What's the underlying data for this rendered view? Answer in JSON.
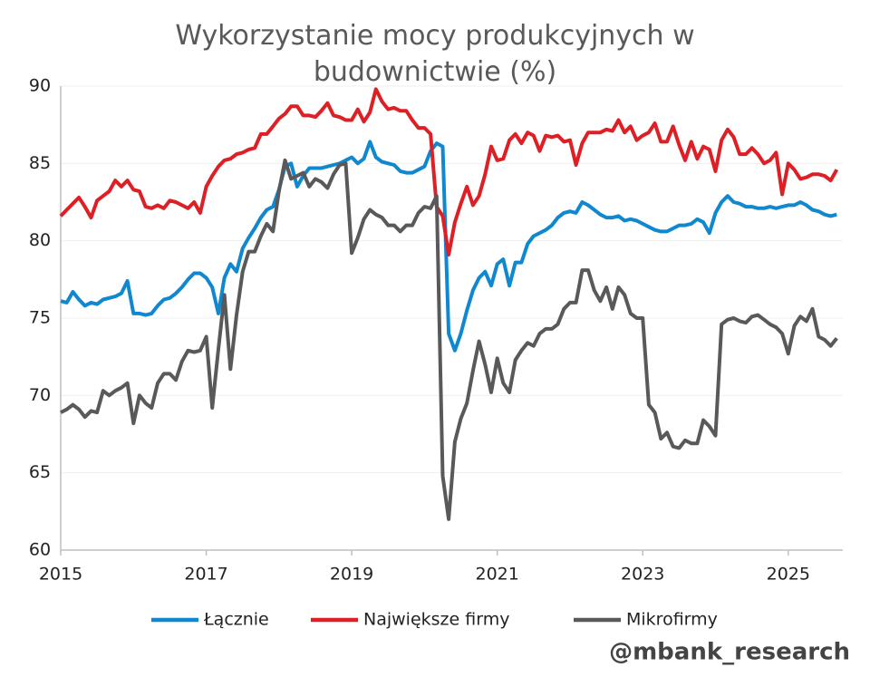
{
  "chart_data": {
    "type": "line",
    "title": "Wykorzystanie mocy produkcyjnych w budownictwie (%)",
    "annotation": "@mbank_research",
    "xlim": [
      2015,
      2025.75
    ],
    "xticks": [
      2015,
      2017,
      2019,
      2021,
      2023,
      2025
    ],
    "ylim": [
      60,
      90
    ],
    "yticks": [
      60,
      65,
      70,
      75,
      80,
      85,
      90
    ],
    "grid": true,
    "legend": "bottom",
    "x": [
      2015,
      2015.083,
      2015.167,
      2015.25,
      2015.333,
      2015.417,
      2015.5,
      2015.583,
      2015.667,
      2015.75,
      2015.833,
      2015.917,
      2016,
      2016.083,
      2016.167,
      2016.25,
      2016.333,
      2016.417,
      2016.5,
      2016.583,
      2016.667,
      2016.75,
      2016.833,
      2016.917,
      2017,
      2017.083,
      2017.167,
      2017.25,
      2017.333,
      2017.417,
      2017.5,
      2017.583,
      2017.667,
      2017.75,
      2017.833,
      2017.917,
      2018,
      2018.083,
      2018.167,
      2018.25,
      2018.333,
      2018.417,
      2018.5,
      2018.583,
      2018.667,
      2018.75,
      2018.833,
      2018.917,
      2019,
      2019.083,
      2019.167,
      2019.25,
      2019.333,
      2019.417,
      2019.5,
      2019.583,
      2019.667,
      2019.75,
      2019.833,
      2019.917,
      2020,
      2020.083,
      2020.167,
      2020.25,
      2020.333,
      2020.417,
      2020.5,
      2020.583,
      2020.667,
      2020.75,
      2020.833,
      2020.917,
      2021,
      2021.083,
      2021.167,
      2021.25,
      2021.333,
      2021.417,
      2021.5,
      2021.583,
      2021.667,
      2021.75,
      2021.833,
      2021.917,
      2022,
      2022.083,
      2022.167,
      2022.25,
      2022.333,
      2022.417,
      2022.5,
      2022.583,
      2022.667,
      2022.75,
      2022.833,
      2022.917,
      2023,
      2023.083,
      2023.167,
      2023.25,
      2023.333,
      2023.417,
      2023.5,
      2023.583,
      2023.667,
      2023.75,
      2023.833,
      2023.917,
      2024,
      2024.083,
      2024.167,
      2024.25,
      2024.333,
      2024.417,
      2024.5,
      2024.583,
      2024.667,
      2024.75,
      2024.833,
      2024.917,
      2025,
      2025.083,
      2025.167,
      2025.25,
      2025.333,
      2025.417,
      2025.5,
      2025.583,
      2025.667
    ],
    "series": [
      {
        "name": "Łącznie",
        "color": "#1088cf",
        "values": [
          76.1,
          76.0,
          76.7,
          76.2,
          75.8,
          76.0,
          75.9,
          76.2,
          76.3,
          76.4,
          76.6,
          77.4,
          75.3,
          75.3,
          75.2,
          75.3,
          75.8,
          76.2,
          76.3,
          76.6,
          77.0,
          77.5,
          77.9,
          77.9,
          77.6,
          77.0,
          75.3,
          77.6,
          78.5,
          78.0,
          79.5,
          80.2,
          80.8,
          81.5,
          82.0,
          82.2,
          83.3,
          84.8,
          85.0,
          83.5,
          84.2,
          84.7,
          84.7,
          84.7,
          84.8,
          84.9,
          85.0,
          85.2,
          85.4,
          85.0,
          85.3,
          86.4,
          85.4,
          85.1,
          85.0,
          84.9,
          84.5,
          84.4,
          84.4,
          84.6,
          84.8,
          85.8,
          86.3,
          86.1,
          74.0,
          72.9,
          74.0,
          75.5,
          76.8,
          77.6,
          78.0,
          77.1,
          78.5,
          78.8,
          77.1,
          78.6,
          78.6,
          79.8,
          80.3,
          80.5,
          80.7,
          81.0,
          81.5,
          81.8,
          81.9,
          81.8,
          82.5,
          82.3,
          82.0,
          81.7,
          81.5,
          81.5,
          81.6,
          81.3,
          81.4,
          81.3,
          81.1,
          80.9,
          80.7,
          80.6,
          80.6,
          80.8,
          81.0,
          81.0,
          81.1,
          81.4,
          81.2,
          80.5,
          81.8,
          82.5,
          82.9,
          82.5,
          82.4,
          82.2,
          82.2,
          82.1,
          82.1,
          82.2,
          82.1,
          82.2,
          82.3,
          82.3,
          82.5,
          82.3,
          82.0,
          81.9,
          81.7,
          81.6,
          81.7
        ]
      },
      {
        "name": "Największe firmy",
        "color": "#dd1f26",
        "values": [
          81.6,
          82.0,
          82.4,
          82.8,
          82.2,
          81.5,
          82.6,
          82.9,
          83.2,
          83.9,
          83.5,
          83.9,
          83.3,
          83.2,
          82.2,
          82.1,
          82.3,
          82.1,
          82.6,
          82.5,
          82.3,
          82.1,
          82.5,
          81.8,
          83.5,
          84.2,
          84.8,
          85.2,
          85.3,
          85.6,
          85.7,
          85.9,
          86.0,
          86.9,
          86.9,
          87.4,
          87.9,
          88.2,
          88.7,
          88.7,
          88.1,
          88.1,
          88.0,
          88.4,
          88.9,
          88.1,
          88.0,
          87.8,
          87.8,
          88.5,
          87.7,
          88.3,
          89.8,
          89.0,
          88.5,
          88.6,
          88.4,
          88.4,
          87.8,
          87.3,
          87.3,
          86.9,
          82.2,
          81.6,
          79.1,
          81.2,
          82.4,
          83.5,
          82.3,
          82.9,
          84.3,
          86.1,
          85.2,
          85.3,
          86.5,
          86.9,
          86.3,
          87.0,
          86.8,
          85.8,
          86.8,
          86.7,
          86.8,
          86.4,
          86.5,
          84.9,
          86.3,
          87.0,
          87.0,
          87.0,
          87.2,
          87.1,
          87.8,
          87.0,
          87.4,
          86.5,
          86.8,
          87.0,
          87.6,
          86.4,
          86.4,
          87.4,
          86.2,
          85.2,
          86.4,
          85.3,
          86.1,
          85.9,
          84.5,
          86.5,
          87.2,
          86.7,
          85.6,
          85.6,
          86.0,
          85.6,
          85.0,
          85.2,
          85.7,
          83.0,
          85.0,
          84.6,
          84.0,
          84.1,
          84.3,
          84.3,
          84.2,
          83.9,
          84.6
        ]
      },
      {
        "name": "Mikrofirmy",
        "color": "#595959",
        "values": [
          68.9,
          69.1,
          69.4,
          69.1,
          68.6,
          69.0,
          68.9,
          70.3,
          70.0,
          70.3,
          70.5,
          70.8,
          68.2,
          70.0,
          69.5,
          69.2,
          70.8,
          71.4,
          71.4,
          71.0,
          72.2,
          72.9,
          72.8,
          72.9,
          73.8,
          69.2,
          73.0,
          76.5,
          71.7,
          75.2,
          78.0,
          79.3,
          79.3,
          80.3,
          81.1,
          80.6,
          83.2,
          85.2,
          84.0,
          84.2,
          84.4,
          83.5,
          84.0,
          83.8,
          83.4,
          84.3,
          84.9,
          85.0,
          79.2,
          80.2,
          81.4,
          82.0,
          81.7,
          81.5,
          81.0,
          81.0,
          80.6,
          81.0,
          81.0,
          81.8,
          82.2,
          82.1,
          82.9,
          64.8,
          62.0,
          67.0,
          68.5,
          69.5,
          71.6,
          73.5,
          72.0,
          70.2,
          72.4,
          70.8,
          70.2,
          72.3,
          72.9,
          73.4,
          73.2,
          74.0,
          74.3,
          74.3,
          74.6,
          75.6,
          76.0,
          76.0,
          78.1,
          78.1,
          76.8,
          76.1,
          77.0,
          75.6,
          77.0,
          76.5,
          75.3,
          75.0,
          75.0,
          69.4,
          68.9,
          67.2,
          67.6,
          66.7,
          66.6,
          67.1,
          66.9,
          66.9,
          68.4,
          68.0,
          67.4,
          74.6,
          74.9,
          75.0,
          74.8,
          74.7,
          75.1,
          75.2,
          74.9,
          74.6,
          74.4,
          74.0,
          72.7,
          74.5,
          75.1,
          74.8,
          75.6,
          73.8,
          73.6,
          73.2,
          73.7
        ]
      }
    ]
  }
}
